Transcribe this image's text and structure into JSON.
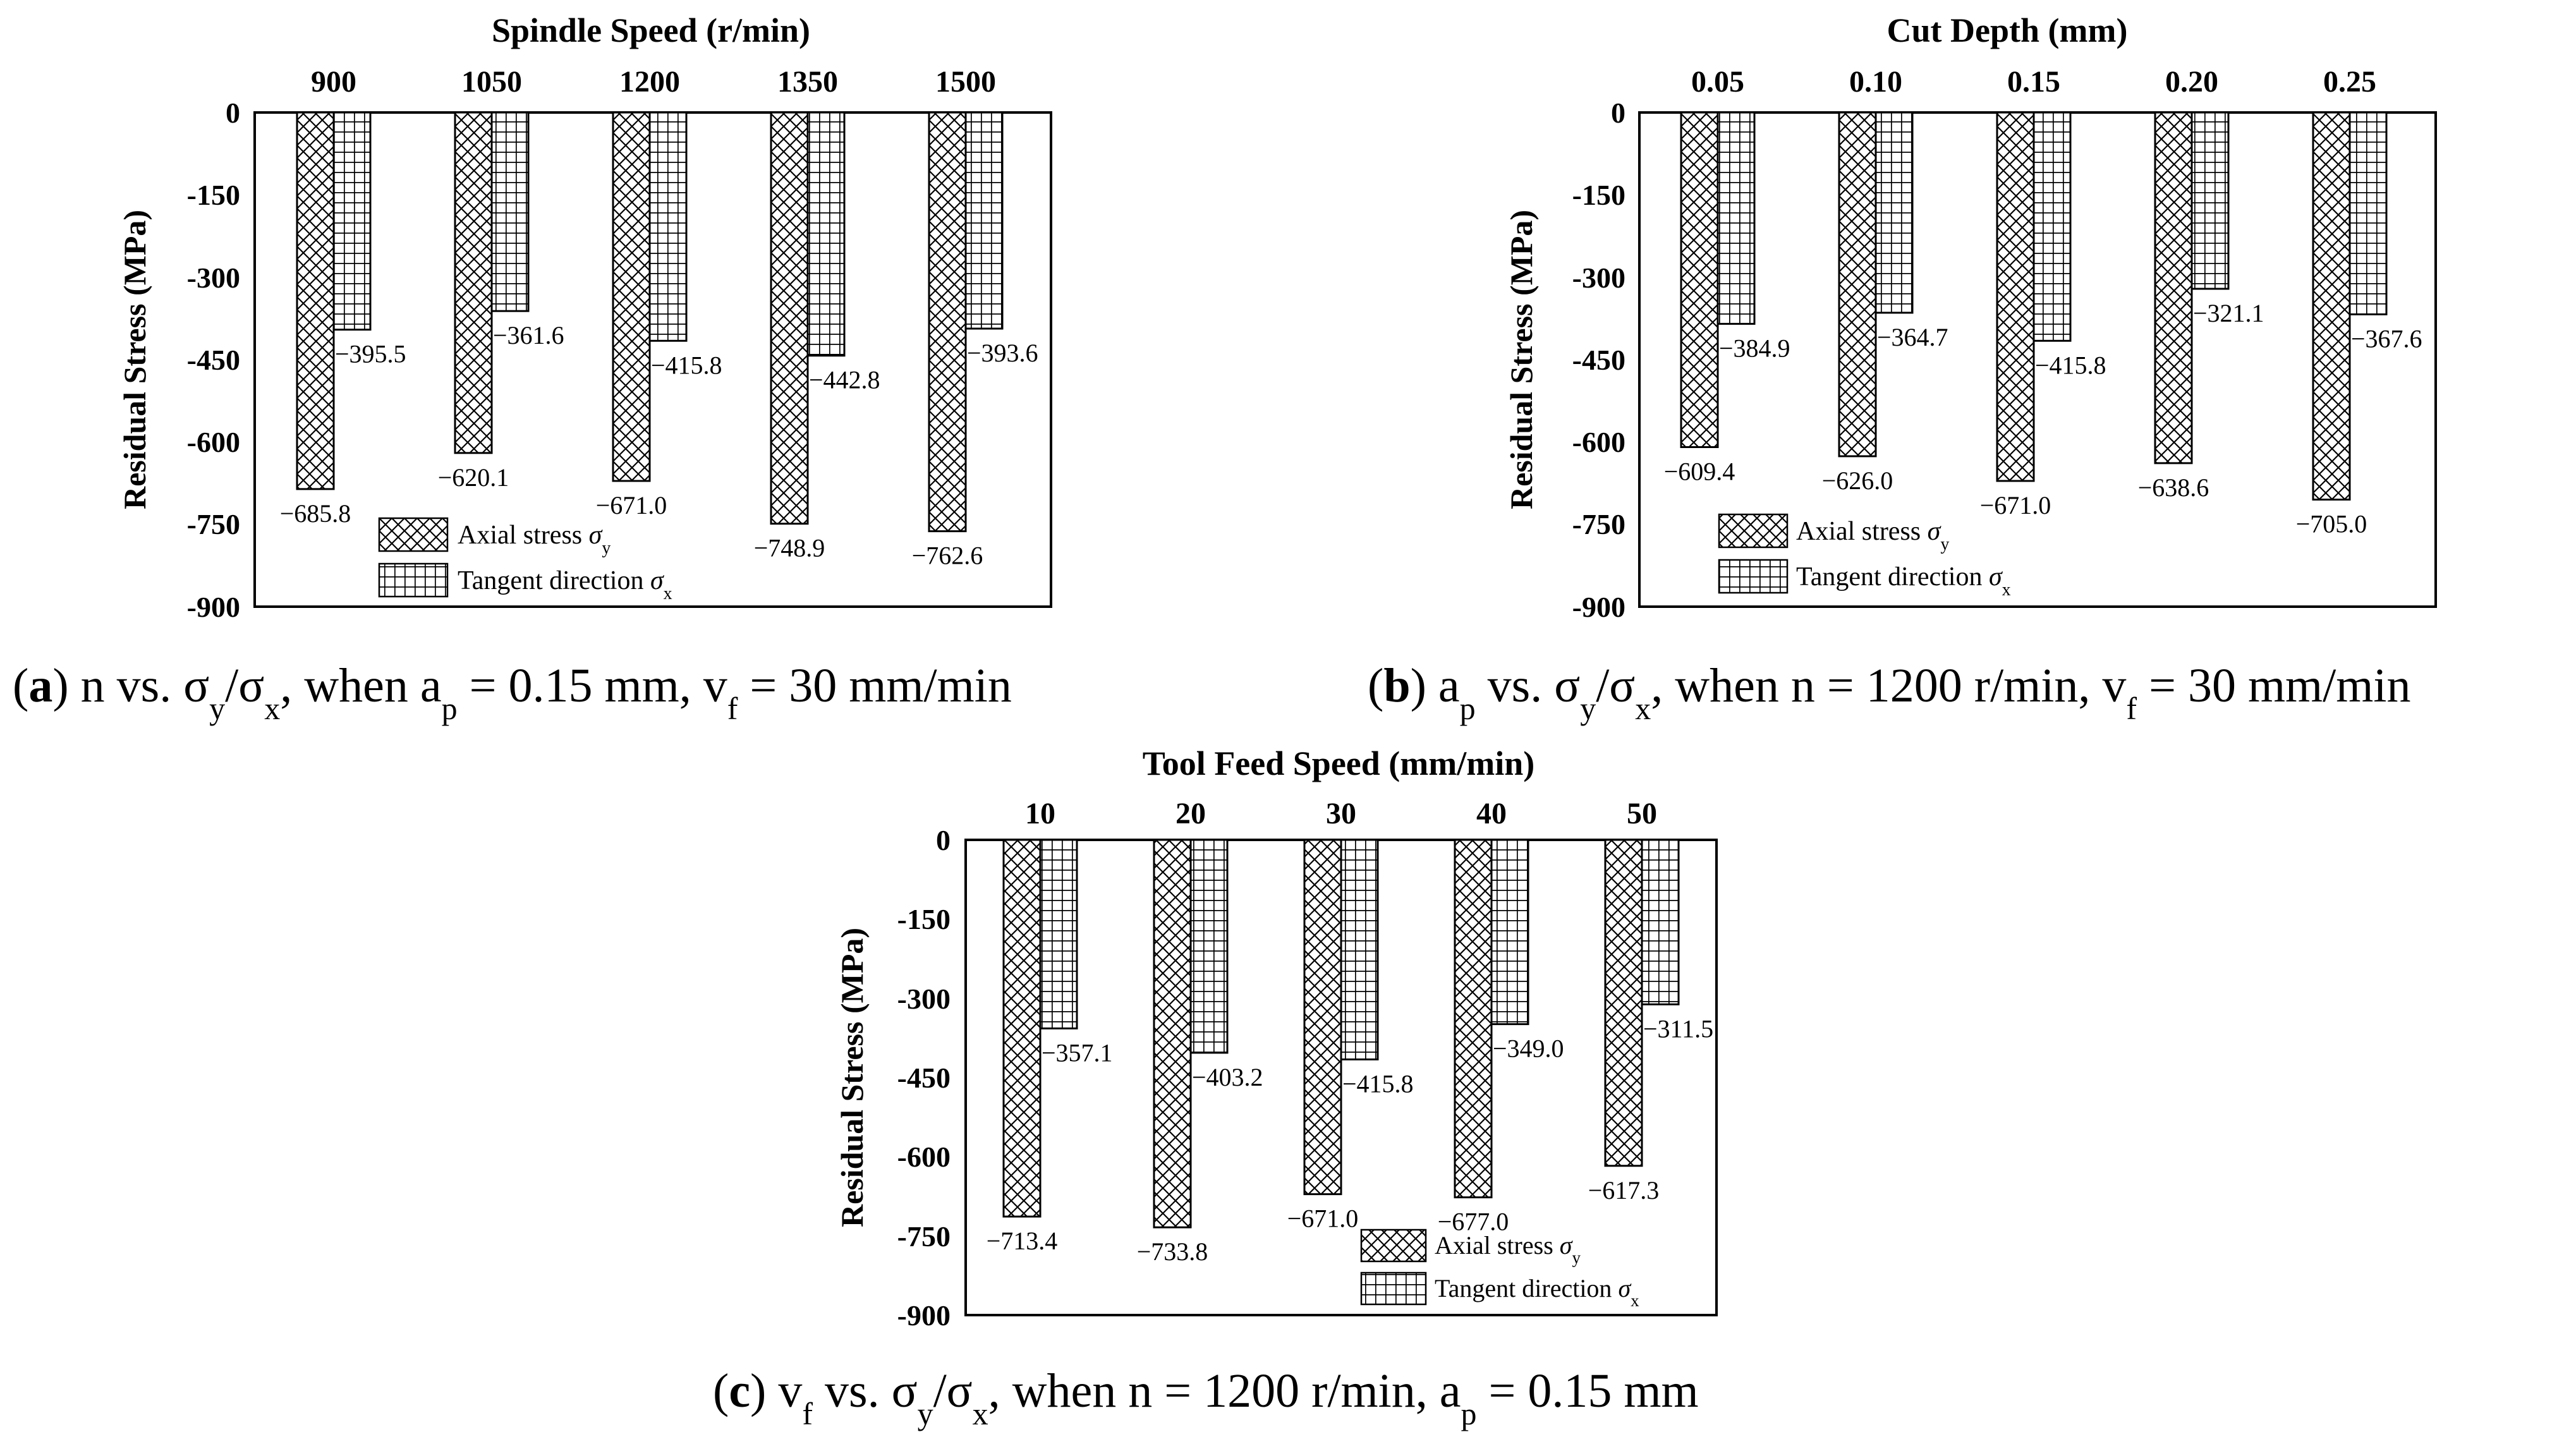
{
  "figure": {
    "chart_data": [
      {
        "type": "bar",
        "panel_id": "a",
        "title": "Spindle Speed (r/min)",
        "ylabel": "Residual Stress (MPa)",
        "categories": [
          "900",
          "1050",
          "1200",
          "1350",
          "1500"
        ],
        "y_ticks": [
          "0",
          "-150",
          "-300",
          "-450",
          "-600",
          "-750",
          "-900"
        ],
        "ylim": [
          -900,
          0
        ],
        "series": [
          {
            "name": "Axial stress σy",
            "pattern": "crosshatch",
            "values": [
              -685.8,
              -620.1,
              -671.0,
              -748.9,
              -762.6
            ],
            "labels": [
              "−685.8",
              "−620.1",
              "−671.0",
              "−748.9",
              "−762.6"
            ]
          },
          {
            "name": "Tangent direction σx",
            "pattern": "grid",
            "values": [
              -395.5,
              -361.6,
              -415.8,
              -442.8,
              -393.6
            ],
            "labels": [
              "−395.5",
              "−361.6",
              "−415.8",
              "−442.8",
              "−393.6"
            ]
          }
        ],
        "legend": {
          "axial_text": "Axial stress ",
          "axial_sym": "σ",
          "axial_sub": "y",
          "tangent_text": "Tangent direction ",
          "tangent_sym": "σ",
          "tangent_sub": "x",
          "placement": "bottom-center"
        },
        "caption": {
          "label": "a",
          "p1": " n vs. σ",
          "s1": "y",
          "p2": "/σ",
          "s2": "x",
          "p3": ", when a",
          "s3": "p",
          "p4": " = 0.15 mm, v",
          "s4": "f",
          "p5": " = 30 mm/min"
        }
      },
      {
        "type": "bar",
        "panel_id": "b",
        "title": "Cut Depth (mm)",
        "ylabel": "Residual Stress (MPa)",
        "categories": [
          "0.05",
          "0.10",
          "0.15",
          "0.20",
          "0.25"
        ],
        "y_ticks": [
          "0",
          "-150",
          "-300",
          "-450",
          "-600",
          "-750",
          "-900"
        ],
        "ylim": [
          -900,
          0
        ],
        "series": [
          {
            "name": "Axial stress σy",
            "pattern": "crosshatch",
            "values": [
              -609.4,
              -626.0,
              -671.0,
              -638.6,
              -705.0
            ],
            "labels": [
              "−609.4",
              "−626.0",
              "−671.0",
              "−638.6",
              "−705.0"
            ]
          },
          {
            "name": "Tangent direction σx",
            "pattern": "grid",
            "values": [
              -384.9,
              -364.7,
              -415.8,
              -321.1,
              -367.6
            ],
            "labels": [
              "−384.9",
              "−364.7",
              "−415.8",
              "−321.1",
              "−367.6"
            ]
          }
        ],
        "legend": {
          "axial_text": "Axial stress ",
          "axial_sym": "σ",
          "axial_sub": "y",
          "tangent_text": "Tangent direction ",
          "tangent_sym": "σ",
          "tangent_sub": "x",
          "placement": "bottom-left"
        },
        "caption": {
          "label": "b",
          "p1": " a",
          "s1": "p",
          "p2": " vs. σ",
          "s2": "y",
          "p3": "/σ",
          "s3": "x",
          "p4": ", when n = 1200 r/min, v",
          "s4": "f",
          "p5": " = 30 mm/min"
        }
      },
      {
        "type": "bar",
        "panel_id": "c",
        "title": "Tool Feed Speed (mm/min)",
        "ylabel": "Residual Stress (MPa)",
        "categories": [
          "10",
          "20",
          "30",
          "40",
          "50"
        ],
        "y_ticks": [
          "0",
          "-150",
          "-300",
          "-450",
          "-600",
          "-750",
          "-900"
        ],
        "ylim": [
          -900,
          0
        ],
        "series": [
          {
            "name": "Axial stress σy",
            "pattern": "crosshatch",
            "values": [
              -713.4,
              -733.8,
              -671.0,
              -677.0,
              -617.3
            ],
            "labels": [
              "−713.4",
              "−733.8",
              "−671.0",
              "−677.0",
              "−617.3"
            ]
          },
          {
            "name": "Tangent direction σx",
            "pattern": "grid",
            "values": [
              -357.1,
              -403.2,
              -415.8,
              -349.0,
              -311.5
            ],
            "labels": [
              "−357.1",
              "−403.2",
              "−415.8",
              "−349.0",
              "−311.5"
            ]
          }
        ],
        "legend": {
          "axial_text": "Axial stress ",
          "axial_sym": "σ",
          "axial_sub": "y",
          "tangent_text": "Tangent direction ",
          "tangent_sym": "σ",
          "tangent_sub": "x",
          "placement": "bottom-right"
        },
        "caption": {
          "label": "c",
          "p1": " v",
          "s1": "f",
          "p2": " vs. σ",
          "s2": "y",
          "p3": "/σ",
          "s3": "x",
          "p4": ", when n = 1200 r/min, a",
          "s4": "p",
          "p5": " = 0.15 mm"
        }
      }
    ]
  }
}
